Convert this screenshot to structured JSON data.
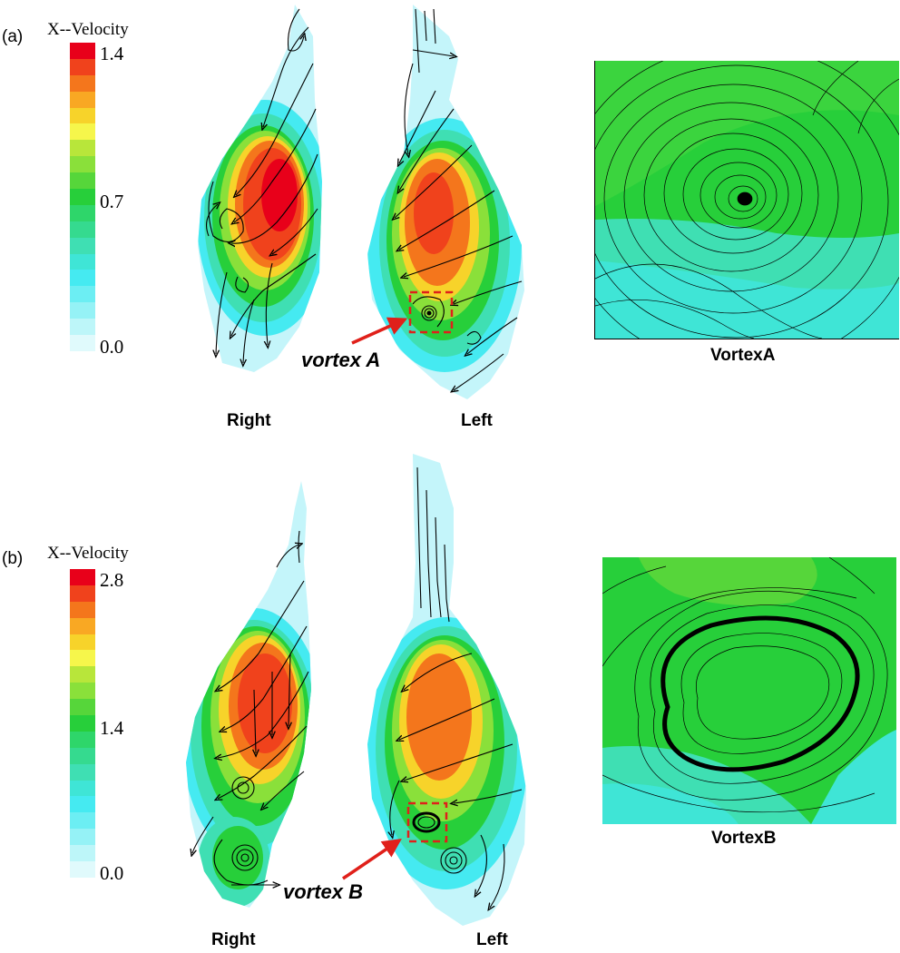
{
  "panel_a": {
    "label": "(a)",
    "colorbar": {
      "title": "X--Velocity",
      "max": "1.4",
      "mid": "0.7",
      "min": "0.0"
    },
    "caption_right": "Right",
    "caption_left": "Left",
    "vortex_label": "vortex A",
    "inset_caption": "VortexA"
  },
  "panel_b": {
    "label": "(b)",
    "colorbar": {
      "title": "X--Velocity",
      "max": "2.8",
      "mid": "1.4",
      "min": "0.0"
    },
    "caption_right": "Right",
    "caption_left": "Left",
    "vortex_label": "vortex B",
    "inset_caption": "VortexB"
  },
  "colors": {
    "scale": [
      "#e8001a",
      "#f0421c",
      "#f4761c",
      "#f9a823",
      "#f7d32a",
      "#f6f64b",
      "#b8e63a",
      "#8ae03a",
      "#56d63a",
      "#27cf3a",
      "#2ed66a",
      "#35da8f",
      "#3fdfb3",
      "#3fe5d6",
      "#45eaf1",
      "#6ceef3",
      "#95f2f6",
      "#bdf6f9",
      "#e0fafc"
    ],
    "annotation": "#e0201a",
    "streamline": "#000000"
  }
}
